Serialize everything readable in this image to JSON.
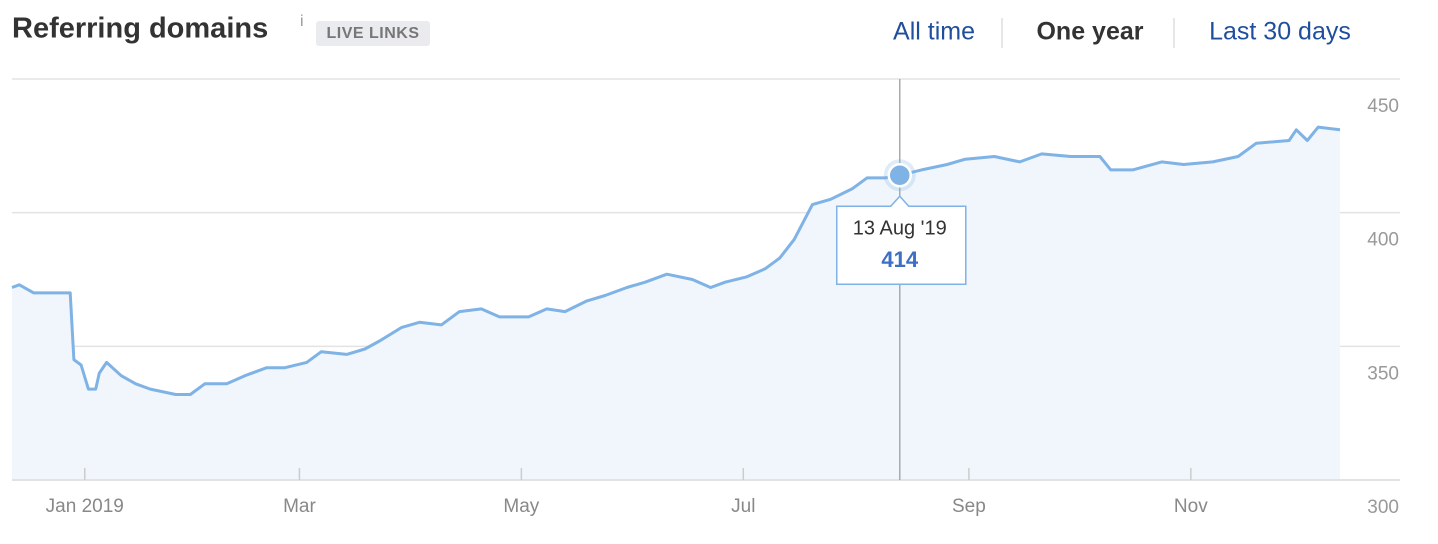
{
  "chart_data": {
    "type": "line",
    "title": "Referring domains",
    "info_icon": "i",
    "badge": "LIVE LINKS",
    "tabs": [
      "All time",
      "One year",
      "Last 30 days"
    ],
    "active_tab": 1,
    "x": [
      "2018-12-12",
      "2018-12-14",
      "2018-12-18",
      "2018-12-28",
      "2018-12-29",
      "2018-12-31",
      "2019-01-02",
      "2019-01-04",
      "2019-01-05",
      "2019-01-07",
      "2019-01-11",
      "2019-01-15",
      "2019-01-19",
      "2019-01-26",
      "2019-01-30",
      "2019-02-03",
      "2019-02-09",
      "2019-02-14",
      "2019-02-20",
      "2019-02-25",
      "2019-03-03",
      "2019-03-07",
      "2019-03-14",
      "2019-03-19",
      "2019-03-23",
      "2019-03-29",
      "2019-04-03",
      "2019-04-09",
      "2019-04-14",
      "2019-04-20",
      "2019-04-25",
      "2019-05-03",
      "2019-05-08",
      "2019-05-13",
      "2019-05-19",
      "2019-05-24",
      "2019-05-30",
      "2019-06-04",
      "2019-06-10",
      "2019-06-17",
      "2019-06-22",
      "2019-06-26",
      "2019-07-02",
      "2019-07-07",
      "2019-07-11",
      "2019-07-15",
      "2019-07-20",
      "2019-07-25",
      "2019-07-31",
      "2019-08-04",
      "2019-08-09",
      "2019-08-13",
      "2019-08-19",
      "2019-08-26",
      "2019-08-31",
      "2019-09-08",
      "2019-09-15",
      "2019-09-21",
      "2019-09-29",
      "2019-10-07",
      "2019-10-10",
      "2019-10-16",
      "2019-10-24",
      "2019-10-30",
      "2019-11-07",
      "2019-11-14",
      "2019-11-19",
      "2019-11-28",
      "2019-11-30",
      "2019-12-03",
      "2019-12-06",
      "2019-12-12"
    ],
    "series": [
      {
        "name": "Referring domains",
        "color": "#7fb2e5",
        "fill": "#f0f6fb",
        "values": [
          372,
          373,
          370,
          370,
          345,
          343,
          334,
          334,
          340,
          344,
          339,
          336,
          334,
          332,
          332,
          336,
          336,
          339,
          342,
          342,
          344,
          348,
          347,
          349,
          352,
          357,
          359,
          358,
          363,
          364,
          361,
          361,
          364,
          363,
          367,
          369,
          372,
          374,
          377,
          375,
          372,
          374,
          376,
          379,
          383,
          390,
          403,
          405,
          409,
          413,
          413,
          414,
          416,
          418,
          420,
          421,
          419,
          422,
          421,
          421,
          416,
          416,
          419,
          418,
          419,
          421,
          426,
          427,
          431,
          427,
          432,
          431
        ]
      }
    ],
    "xlim": [
      "2018-12-12",
      "2019-12-12"
    ],
    "xticks": [
      {
        "value": "2019-01",
        "label": "Jan 2019"
      },
      {
        "value": "2019-03",
        "label": "Mar"
      },
      {
        "value": "2019-05",
        "label": "May"
      },
      {
        "value": "2019-07",
        "label": "Jul"
      },
      {
        "value": "2019-09",
        "label": "Sep"
      },
      {
        "value": "2019-11",
        "label": "Nov"
      }
    ],
    "ylim": [
      300,
      450
    ],
    "yticks": [
      300,
      350,
      400,
      450
    ],
    "grid": true,
    "tooltip": {
      "index": 51,
      "date": "13 Aug '19",
      "value": 414
    }
  }
}
